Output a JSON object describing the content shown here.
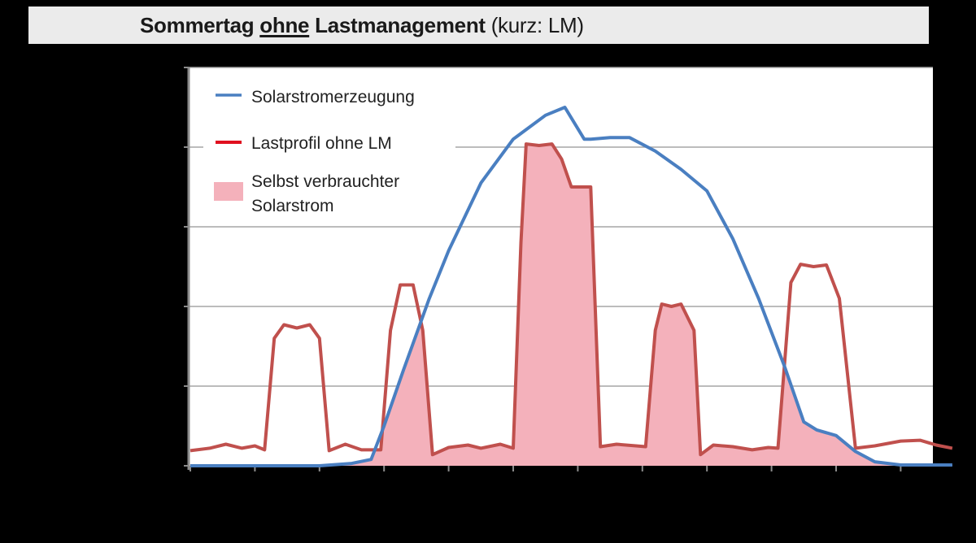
{
  "title": {
    "part1": "Sommertag",
    "part2": "ohne",
    "part3": "Lastmanagement",
    "part4": "(kurz: LM)"
  },
  "colors": {
    "solar": "#4a7fc1",
    "load": "#c0504d",
    "load_legend": "#e0101f",
    "self_consumption": "#f4b1bb",
    "grid": "#a6a6a6",
    "title_bg": "#ebebeb"
  },
  "legend": {
    "solar": "Solarstromerzeugung",
    "load": "Lastprofil ohne LM",
    "self_line1": "Selbst verbrauchter",
    "self_line2": "Solarstrom"
  },
  "chart_data": {
    "type": "line",
    "title": "Sommertag ohne Lastmanagement (kurz: LM)",
    "xlabel": "",
    "ylabel": "",
    "x_ticks": 12,
    "y_ticks": 6,
    "ylim": [
      0,
      5
    ],
    "xlim": [
      0,
      11.8
    ],
    "grid": true,
    "legend_position": "upper-left",
    "series": [
      {
        "name": "Solarstromerzeugung",
        "type": "line",
        "points": [
          [
            0,
            0
          ],
          [
            1,
            0
          ],
          [
            2,
            0
          ],
          [
            2.5,
            0.03
          ],
          [
            2.8,
            0.08
          ],
          [
            3.0,
            0.5
          ],
          [
            3.3,
            1.2
          ],
          [
            3.7,
            2.1
          ],
          [
            4.0,
            2.7
          ],
          [
            4.5,
            3.55
          ],
          [
            5.0,
            4.1
          ],
          [
            5.5,
            4.4
          ],
          [
            5.8,
            4.5
          ],
          [
            6.1,
            4.1
          ],
          [
            6.2,
            4.1
          ],
          [
            6.5,
            4.12
          ],
          [
            6.8,
            4.12
          ],
          [
            7.2,
            3.95
          ],
          [
            7.6,
            3.72
          ],
          [
            8.0,
            3.45
          ],
          [
            8.4,
            2.85
          ],
          [
            8.8,
            2.1
          ],
          [
            9.2,
            1.25
          ],
          [
            9.5,
            0.55
          ],
          [
            9.7,
            0.45
          ],
          [
            10.0,
            0.38
          ],
          [
            10.3,
            0.18
          ],
          [
            10.6,
            0.05
          ],
          [
            11.0,
            0.01
          ],
          [
            11.8,
            0.01
          ]
        ]
      },
      {
        "name": "Lastprofil ohne LM",
        "type": "line",
        "points": [
          [
            0,
            0.19
          ],
          [
            0.3,
            0.22
          ],
          [
            0.55,
            0.27
          ],
          [
            0.8,
            0.22
          ],
          [
            1.0,
            0.25
          ],
          [
            1.15,
            0.2
          ],
          [
            1.3,
            1.6
          ],
          [
            1.45,
            1.77
          ],
          [
            1.65,
            1.73
          ],
          [
            1.85,
            1.77
          ],
          [
            2.0,
            1.6
          ],
          [
            2.15,
            0.19
          ],
          [
            2.4,
            0.27
          ],
          [
            2.65,
            0.2
          ],
          [
            2.95,
            0.2
          ],
          [
            3.1,
            1.7
          ],
          [
            3.25,
            2.27
          ],
          [
            3.45,
            2.27
          ],
          [
            3.6,
            1.7
          ],
          [
            3.75,
            0.14
          ],
          [
            4.0,
            0.23
          ],
          [
            4.3,
            0.26
          ],
          [
            4.5,
            0.22
          ],
          [
            4.8,
            0.27
          ],
          [
            5.0,
            0.22
          ],
          [
            5.12,
            2.8
          ],
          [
            5.2,
            4.04
          ],
          [
            5.4,
            4.02
          ],
          [
            5.6,
            4.04
          ],
          [
            5.75,
            3.85
          ],
          [
            5.9,
            3.5
          ],
          [
            6.1,
            3.5
          ],
          [
            6.2,
            3.5
          ],
          [
            6.35,
            0.24
          ],
          [
            6.6,
            0.27
          ],
          [
            6.9,
            0.25
          ],
          [
            7.05,
            0.24
          ],
          [
            7.2,
            1.7
          ],
          [
            7.3,
            2.03
          ],
          [
            7.45,
            2.0
          ],
          [
            7.6,
            2.03
          ],
          [
            7.8,
            1.7
          ],
          [
            7.9,
            0.14
          ],
          [
            8.1,
            0.26
          ],
          [
            8.4,
            0.24
          ],
          [
            8.7,
            0.2
          ],
          [
            8.95,
            0.23
          ],
          [
            9.1,
            0.22
          ],
          [
            9.3,
            2.3
          ],
          [
            9.45,
            2.53
          ],
          [
            9.65,
            2.5
          ],
          [
            9.85,
            2.52
          ],
          [
            10.05,
            2.1
          ],
          [
            10.3,
            0.22
          ],
          [
            10.6,
            0.25
          ],
          [
            11.0,
            0.31
          ],
          [
            11.3,
            0.32
          ],
          [
            11.55,
            0.26
          ],
          [
            11.8,
            0.22
          ]
        ]
      },
      {
        "name": "Selbst verbrauchter Solarstrom",
        "type": "area",
        "definition": "min(Solarstromerzeugung, Lastprofil ohne LM)"
      }
    ]
  }
}
